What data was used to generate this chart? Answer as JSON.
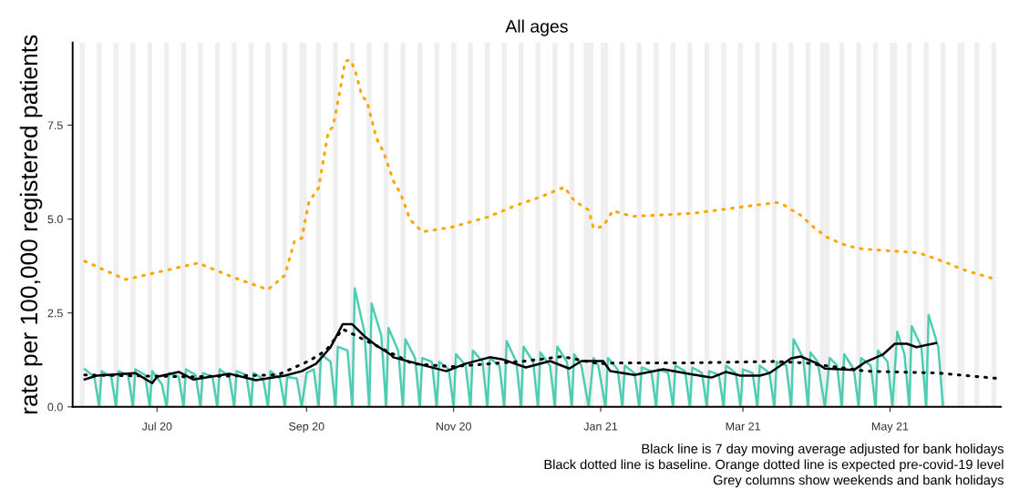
{
  "chart_data": {
    "type": "line",
    "title": "All ages",
    "ylabel": "rate per 100,000 registered patients",
    "xlim": [
      "2020-05-27",
      "2021-06-16"
    ],
    "ylim": [
      0,
      9.7
    ],
    "xticks": [
      {
        "value": "2020-07-01",
        "label": "Jul 20"
      },
      {
        "value": "2020-09-01",
        "label": "Sep 20"
      },
      {
        "value": "2020-11-01",
        "label": "Nov 20"
      },
      {
        "value": "2021-01-01",
        "label": "Jan 21"
      },
      {
        "value": "2021-03-01",
        "label": "Mar 21"
      },
      {
        "value": "2021-05-01",
        "label": "May 21"
      }
    ],
    "yticks": [
      {
        "value": 0,
        "label": "0.0"
      },
      {
        "value": 2.5,
        "label": "2.5"
      },
      {
        "value": 5,
        "label": "5.0"
      },
      {
        "value": 7.5,
        "label": "7.5"
      }
    ],
    "series": [
      {
        "color": "#4ecdb4",
        "line_style": "solid",
        "x": [
          "2020-06-01",
          "2020-06-05",
          "2020-06-07",
          "2020-06-08",
          "2020-06-12",
          "2020-06-14",
          "2020-06-15",
          "2020-06-19",
          "2020-06-21",
          "2020-06-22",
          "2020-06-26",
          "2020-06-28",
          "2020-06-29",
          "2020-07-03",
          "2020-07-05",
          "2020-07-06",
          "2020-07-10",
          "2020-07-12",
          "2020-07-13",
          "2020-07-17",
          "2020-07-19",
          "2020-07-20",
          "2020-07-24",
          "2020-07-26",
          "2020-07-27",
          "2020-07-31",
          "2020-08-02",
          "2020-08-03",
          "2020-08-07",
          "2020-08-09",
          "2020-08-10",
          "2020-08-14",
          "2020-08-16",
          "2020-08-17",
          "2020-08-21",
          "2020-08-23",
          "2020-08-24",
          "2020-08-28",
          "2020-08-30",
          "2020-09-01",
          "2020-09-04",
          "2020-09-06",
          "2020-09-07",
          "2020-09-11",
          "2020-09-13",
          "2020-09-14",
          "2020-09-18",
          "2020-09-20",
          "2020-09-21",
          "2020-09-25",
          "2020-09-27",
          "2020-09-28",
          "2020-10-02",
          "2020-10-04",
          "2020-10-05",
          "2020-10-09",
          "2020-10-11",
          "2020-10-12",
          "2020-10-16",
          "2020-10-18",
          "2020-10-19",
          "2020-10-23",
          "2020-10-25",
          "2020-10-26",
          "2020-10-30",
          "2020-11-01",
          "2020-11-02",
          "2020-11-06",
          "2020-11-08",
          "2020-11-09",
          "2020-11-13",
          "2020-11-15",
          "2020-11-16",
          "2020-11-20",
          "2020-11-22",
          "2020-11-23",
          "2020-11-27",
          "2020-11-29",
          "2020-11-30",
          "2020-12-04",
          "2020-12-06",
          "2020-12-07",
          "2020-12-11",
          "2020-12-13",
          "2020-12-14",
          "2020-12-18",
          "2020-12-20",
          "2020-12-21",
          "2020-12-24",
          "2020-12-27",
          "2020-12-29",
          "2020-12-31",
          "2021-01-03",
          "2021-01-04",
          "2021-01-08",
          "2021-01-10",
          "2021-01-11",
          "2021-01-15",
          "2021-01-17",
          "2021-01-18",
          "2021-01-22",
          "2021-01-24",
          "2021-01-25",
          "2021-01-29",
          "2021-01-31",
          "2021-02-01",
          "2021-02-05",
          "2021-02-07",
          "2021-02-08",
          "2021-02-12",
          "2021-02-14",
          "2021-02-15",
          "2021-02-19",
          "2021-02-21",
          "2021-02-22",
          "2021-02-26",
          "2021-02-28",
          "2021-03-01",
          "2021-03-05",
          "2021-03-07",
          "2021-03-08",
          "2021-03-12",
          "2021-03-14",
          "2021-03-15",
          "2021-03-19",
          "2021-03-21",
          "2021-03-22",
          "2021-03-26",
          "2021-03-28",
          "2021-03-29",
          "2021-04-01",
          "2021-04-04",
          "2021-04-06",
          "2021-04-09",
          "2021-04-11",
          "2021-04-12",
          "2021-04-16",
          "2021-04-18",
          "2021-04-19",
          "2021-04-23",
          "2021-04-25",
          "2021-04-26",
          "2021-04-30",
          "2021-05-02",
          "2021-05-04",
          "2021-05-07",
          "2021-05-09",
          "2021-05-10",
          "2021-05-14",
          "2021-05-16",
          "2021-05-17",
          "2021-05-21",
          "2021-05-23"
        ],
        "values": [
          1.0,
          0.8,
          0,
          0.95,
          0.8,
          0,
          0.95,
          0.85,
          0,
          1.0,
          0.85,
          0,
          0.95,
          0.6,
          0,
          0.9,
          0.8,
          0,
          1.0,
          0.85,
          0,
          0.9,
          0.8,
          0,
          1.0,
          0.8,
          0,
          0.95,
          0.85,
          0,
          0.9,
          0.75,
          0,
          0.95,
          0.75,
          0,
          0.8,
          0.75,
          0,
          0.9,
          1.0,
          0,
          1.4,
          1.2,
          0,
          1.6,
          1.5,
          0,
          3.15,
          2.0,
          0,
          2.75,
          1.9,
          0,
          2.1,
          1.5,
          0,
          1.8,
          1.3,
          0,
          1.3,
          1.2,
          0,
          1.2,
          1.0,
          0,
          1.4,
          1.1,
          0,
          1.5,
          1.2,
          0,
          1.3,
          1.1,
          0,
          1.75,
          1.2,
          0,
          1.6,
          1.2,
          0,
          1.45,
          1.1,
          0,
          1.6,
          1.2,
          0,
          1.4,
          1.1,
          0,
          1.3,
          1.1,
          0,
          1.3,
          1.0,
          0,
          1.1,
          0.9,
          0,
          1.05,
          0.95,
          0,
          1.0,
          0.9,
          0,
          1.1,
          0.95,
          0,
          1.05,
          0.9,
          0,
          0.95,
          0.85,
          0,
          1.1,
          0.9,
          0,
          1.0,
          0.9,
          0,
          1.1,
          0.9,
          0,
          1.2,
          1.1,
          0,
          1.8,
          1.3,
          0,
          1.45,
          1.2,
          0,
          1.3,
          1.1,
          0,
          1.4,
          1.0,
          0,
          1.3,
          1.1,
          0,
          1.5,
          1.2,
          0,
          2.0,
          1.4,
          0,
          2.15,
          1.6,
          0,
          2.45,
          1.6,
          0
        ]
      },
      {
        "color": "#000000",
        "line_style": "dotted",
        "x": [
          "2020-06-01",
          "2020-07-15",
          "2020-08-20",
          "2020-09-02",
          "2020-09-09",
          "2020-09-16",
          "2020-10-15",
          "2020-10-31",
          "2020-12-01",
          "2020-12-16",
          "2020-12-31",
          "2021-01-08",
          "2021-02-06",
          "2021-03-14",
          "2021-03-27",
          "2021-04-21",
          "2021-05-21",
          "2021-06-14"
        ],
        "values": [
          0.85,
          0.8,
          0.85,
          1.22,
          1.5,
          2.07,
          1.15,
          1.07,
          1.22,
          1.34,
          1.15,
          1.17,
          1.17,
          1.21,
          1.17,
          0.95,
          0.9,
          0.76
        ]
      },
      {
        "color": "#ffa500",
        "line_style": "dotted",
        "x": [
          "2020-06-01",
          "2020-06-18",
          "2020-07-18",
          "2020-08-02",
          "2020-08-16",
          "2020-08-23",
          "2020-08-27",
          "2020-08-30",
          "2020-09-02",
          "2020-09-06",
          "2020-09-10",
          "2020-09-12",
          "2020-09-15",
          "2020-09-17",
          "2020-09-19",
          "2020-09-21",
          "2020-09-24",
          "2020-09-26",
          "2020-09-30",
          "2020-10-03",
          "2020-10-07",
          "2020-10-10",
          "2020-10-14",
          "2020-10-19",
          "2020-10-31",
          "2020-11-15",
          "2020-11-26",
          "2020-12-07",
          "2020-12-17",
          "2020-12-21",
          "2020-12-27",
          "2020-12-29",
          "2021-01-02",
          "2021-01-06",
          "2021-01-14",
          "2021-02-08",
          "2021-02-28",
          "2021-03-15",
          "2021-03-18",
          "2021-03-25",
          "2021-03-30",
          "2021-04-05",
          "2021-04-13",
          "2021-04-20",
          "2021-05-09",
          "2021-05-13",
          "2021-05-24",
          "2021-05-31",
          "2021-06-14"
        ],
        "values": [
          3.88,
          3.39,
          3.83,
          3.44,
          3.12,
          3.5,
          4.41,
          4.49,
          5.46,
          5.83,
          7.32,
          7.46,
          8.46,
          9.2,
          9.24,
          9.0,
          8.27,
          8.15,
          7.15,
          6.78,
          6.02,
          5.68,
          4.98,
          4.66,
          4.78,
          5.05,
          5.34,
          5.59,
          5.85,
          5.49,
          5.24,
          4.76,
          4.8,
          5.22,
          5.07,
          5.15,
          5.32,
          5.44,
          5.37,
          5.1,
          4.8,
          4.51,
          4.29,
          4.2,
          4.12,
          4.1,
          3.85,
          3.66,
          3.39
        ]
      },
      {
        "color": "#000000",
        "line_style": "solid",
        "x": [
          "2020-06-01",
          "2020-06-06",
          "2020-06-22",
          "2020-06-29",
          "2020-07-01",
          "2020-07-10",
          "2020-07-16",
          "2020-07-31",
          "2020-08-11",
          "2020-08-23",
          "2020-08-30",
          "2020-09-05",
          "2020-09-11",
          "2020-09-16",
          "2020-09-20",
          "2020-09-25",
          "2020-09-30",
          "2020-10-06",
          "2020-10-07",
          "2020-10-17",
          "2020-10-29",
          "2020-11-06",
          "2020-11-16",
          "2020-11-21",
          "2020-12-01",
          "2020-12-11",
          "2020-12-19",
          "2020-12-24",
          "2021-01-02",
          "2021-01-05",
          "2021-01-15",
          "2021-01-27",
          "2021-02-11",
          "2021-02-16",
          "2021-02-22",
          "2021-02-28",
          "2021-03-08",
          "2021-03-12",
          "2021-03-21",
          "2021-03-25",
          "2021-04-01",
          "2021-04-04",
          "2021-04-16",
          "2021-04-21",
          "2021-04-28",
          "2021-05-03",
          "2021-05-08",
          "2021-05-12",
          "2021-05-20"
        ],
        "values": [
          0.73,
          0.83,
          0.9,
          0.63,
          0.8,
          0.93,
          0.73,
          0.88,
          0.71,
          0.83,
          0.95,
          1.15,
          1.59,
          2.2,
          2.2,
          1.88,
          1.63,
          1.39,
          1.32,
          1.15,
          0.95,
          1.15,
          1.32,
          1.27,
          1.05,
          1.22,
          1.02,
          1.22,
          1.22,
          0.95,
          0.85,
          1.0,
          0.83,
          0.78,
          0.93,
          0.83,
          0.83,
          0.9,
          1.29,
          1.34,
          1.15,
          1.02,
          0.98,
          1.2,
          1.39,
          1.68,
          1.68,
          1.59,
          1.7
        ]
      }
    ],
    "bands": [
      {
        "axis": "x",
        "from": "2020-05-30",
        "to": "2020-06-01",
        "color": "#efefef"
      },
      {
        "axis": "x",
        "from": "2020-06-06",
        "to": "2020-06-08",
        "color": "#efefef"
      },
      {
        "axis": "x",
        "from": "2020-06-13",
        "to": "2020-06-15",
        "color": "#efefef"
      },
      {
        "axis": "x",
        "from": "2020-06-20",
        "to": "2020-06-22",
        "color": "#efefef"
      },
      {
        "axis": "x",
        "from": "2020-06-27",
        "to": "2020-06-29",
        "color": "#efefef"
      },
      {
        "axis": "x",
        "from": "2020-07-04",
        "to": "2020-07-06",
        "color": "#efefef"
      },
      {
        "axis": "x",
        "from": "2020-07-11",
        "to": "2020-07-13",
        "color": "#efefef"
      },
      {
        "axis": "x",
        "from": "2020-07-18",
        "to": "2020-07-20",
        "color": "#efefef"
      },
      {
        "axis": "x",
        "from": "2020-07-25",
        "to": "2020-07-27",
        "color": "#efefef"
      },
      {
        "axis": "x",
        "from": "2020-08-01",
        "to": "2020-08-03",
        "color": "#efefef"
      },
      {
        "axis": "x",
        "from": "2020-08-08",
        "to": "2020-08-10",
        "color": "#efefef"
      },
      {
        "axis": "x",
        "from": "2020-08-15",
        "to": "2020-08-17",
        "color": "#efefef"
      },
      {
        "axis": "x",
        "from": "2020-08-22",
        "to": "2020-08-24",
        "color": "#efefef"
      },
      {
        "axis": "x",
        "from": "2020-08-29",
        "to": "2020-09-01",
        "color": "#efefef"
      },
      {
        "axis": "x",
        "from": "2020-09-05",
        "to": "2020-09-07",
        "color": "#efefef"
      },
      {
        "axis": "x",
        "from": "2020-09-12",
        "to": "2020-09-14",
        "color": "#efefef"
      },
      {
        "axis": "x",
        "from": "2020-09-19",
        "to": "2020-09-21",
        "color": "#efefef"
      },
      {
        "axis": "x",
        "from": "2020-09-26",
        "to": "2020-09-28",
        "color": "#efefef"
      },
      {
        "axis": "x",
        "from": "2020-10-03",
        "to": "2020-10-05",
        "color": "#efefef"
      },
      {
        "axis": "x",
        "from": "2020-10-10",
        "to": "2020-10-12",
        "color": "#efefef"
      },
      {
        "axis": "x",
        "from": "2020-10-17",
        "to": "2020-10-19",
        "color": "#efefef"
      },
      {
        "axis": "x",
        "from": "2020-10-24",
        "to": "2020-10-26",
        "color": "#efefef"
      },
      {
        "axis": "x",
        "from": "2020-10-31",
        "to": "2020-11-02",
        "color": "#efefef"
      },
      {
        "axis": "x",
        "from": "2020-11-07",
        "to": "2020-11-09",
        "color": "#efefef"
      },
      {
        "axis": "x",
        "from": "2020-11-14",
        "to": "2020-11-16",
        "color": "#efefef"
      },
      {
        "axis": "x",
        "from": "2020-11-21",
        "to": "2020-11-23",
        "color": "#efefef"
      },
      {
        "axis": "x",
        "from": "2020-11-28",
        "to": "2020-11-30",
        "color": "#efefef"
      },
      {
        "axis": "x",
        "from": "2020-12-05",
        "to": "2020-12-07",
        "color": "#efefef"
      },
      {
        "axis": "x",
        "from": "2020-12-12",
        "to": "2020-12-14",
        "color": "#efefef"
      },
      {
        "axis": "x",
        "from": "2020-12-19",
        "to": "2020-12-21",
        "color": "#efefef"
      },
      {
        "axis": "x",
        "from": "2020-12-25",
        "to": "2020-12-29",
        "color": "#efefef"
      },
      {
        "axis": "x",
        "from": "2021-01-01",
        "to": "2021-01-04",
        "color": "#efefef"
      },
      {
        "axis": "x",
        "from": "2021-01-09",
        "to": "2021-01-11",
        "color": "#efefef"
      },
      {
        "axis": "x",
        "from": "2021-01-16",
        "to": "2021-01-18",
        "color": "#efefef"
      },
      {
        "axis": "x",
        "from": "2021-01-23",
        "to": "2021-01-25",
        "color": "#efefef"
      },
      {
        "axis": "x",
        "from": "2021-01-30",
        "to": "2021-02-01",
        "color": "#efefef"
      },
      {
        "axis": "x",
        "from": "2021-02-06",
        "to": "2021-02-08",
        "color": "#efefef"
      },
      {
        "axis": "x",
        "from": "2021-02-13",
        "to": "2021-02-15",
        "color": "#efefef"
      },
      {
        "axis": "x",
        "from": "2021-02-20",
        "to": "2021-02-22",
        "color": "#efefef"
      },
      {
        "axis": "x",
        "from": "2021-02-27",
        "to": "2021-03-01",
        "color": "#efefef"
      },
      {
        "axis": "x",
        "from": "2021-03-06",
        "to": "2021-03-08",
        "color": "#efefef"
      },
      {
        "axis": "x",
        "from": "2021-03-13",
        "to": "2021-03-15",
        "color": "#efefef"
      },
      {
        "axis": "x",
        "from": "2021-03-20",
        "to": "2021-03-22",
        "color": "#efefef"
      },
      {
        "axis": "x",
        "from": "2021-03-27",
        "to": "2021-03-29",
        "color": "#efefef"
      },
      {
        "axis": "x",
        "from": "2021-04-02",
        "to": "2021-04-06",
        "color": "#efefef"
      },
      {
        "axis": "x",
        "from": "2021-04-10",
        "to": "2021-04-12",
        "color": "#efefef"
      },
      {
        "axis": "x",
        "from": "2021-04-17",
        "to": "2021-04-19",
        "color": "#efefef"
      },
      {
        "axis": "x",
        "from": "2021-04-24",
        "to": "2021-04-26",
        "color": "#efefef"
      },
      {
        "axis": "x",
        "from": "2021-05-01",
        "to": "2021-05-04",
        "color": "#efefef"
      },
      {
        "axis": "x",
        "from": "2021-05-08",
        "to": "2021-05-10",
        "color": "#efefef"
      },
      {
        "axis": "x",
        "from": "2021-05-15",
        "to": "2021-05-17",
        "color": "#efefef"
      },
      {
        "axis": "x",
        "from": "2021-05-22",
        "to": "2021-05-24",
        "color": "#efefef"
      },
      {
        "axis": "x",
        "from": "2021-05-29",
        "to": "2021-06-01",
        "color": "#efefef"
      },
      {
        "axis": "x",
        "from": "2021-06-05",
        "to": "2021-06-07",
        "color": "#efefef"
      },
      {
        "axis": "x",
        "from": "2021-06-12",
        "to": "2021-06-14",
        "color": "#efefef"
      }
    ],
    "annotations": [
      "Black line is 7 day moving average adjusted for bank holidays",
      "Black dotted line is baseline. Orange dotted line is expected pre-covid-19 level",
      "Grey columns show weekends and bank holidays"
    ]
  }
}
